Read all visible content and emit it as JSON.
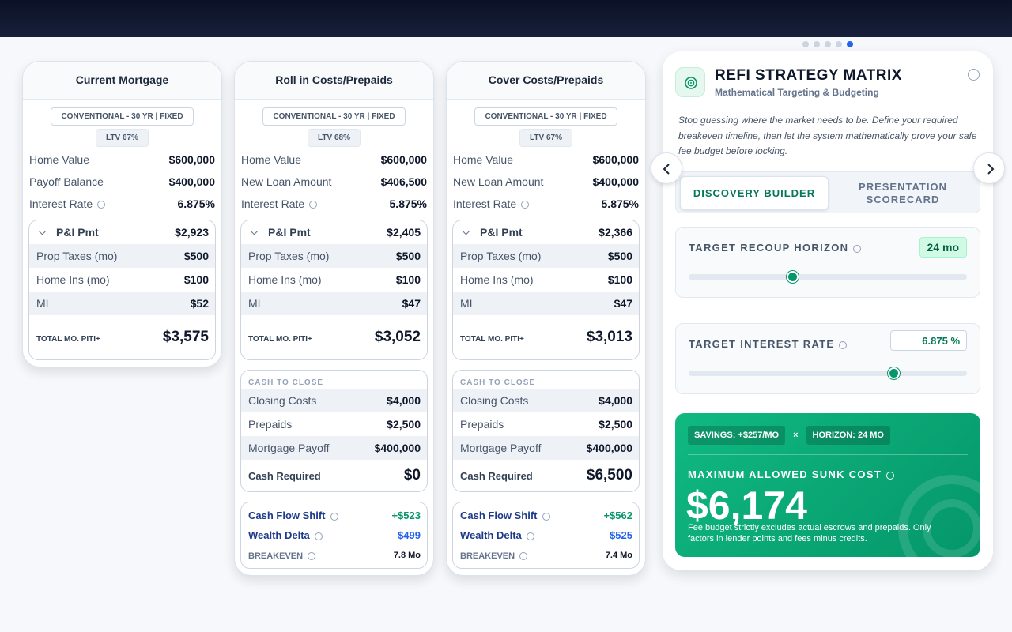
{
  "columns": [
    {
      "title": "Current Mortgage",
      "badges": [
        "CONVENTIONAL - 30 YR | FIXED",
        "LTV 67%"
      ],
      "rows": [
        [
          "Home Value",
          "$600,000"
        ],
        [
          "Payoff Balance",
          "$400,000"
        ],
        [
          "Interest Rate",
          "6.875%"
        ]
      ],
      "piti": {
        "head": [
          "P&I Pmt",
          "$2,923"
        ],
        "rows": [
          [
            "Prop Taxes (mo)",
            "$500"
          ],
          [
            "Home Ins (mo)",
            "$100"
          ],
          [
            "MI",
            "$52"
          ]
        ],
        "total": [
          "TOTAL MO. PITI+",
          "$3,575"
        ]
      }
    },
    {
      "title": "Roll in Costs/Prepaids",
      "badges": [
        "CONVENTIONAL - 30 YR | FIXED",
        "LTV 68%"
      ],
      "rows": [
        [
          "Home Value",
          "$600,000"
        ],
        [
          "New Loan Amount",
          "$406,500"
        ],
        [
          "Interest Rate",
          "5.875%"
        ]
      ],
      "piti": {
        "head": [
          "P&I Pmt",
          "$2,405"
        ],
        "rows": [
          [
            "Prop Taxes (mo)",
            "$500"
          ],
          [
            "Home Ins (mo)",
            "$100"
          ],
          [
            "MI",
            "$47"
          ]
        ],
        "total": [
          "TOTAL MO. PITI+",
          "$3,052"
        ]
      },
      "cash": {
        "label": "CASH TO CLOSE",
        "rows": [
          [
            "Closing Costs",
            "$4,000"
          ],
          [
            "Prepaids",
            "$2,500"
          ],
          [
            "Mortgage Payoff",
            "$400,000"
          ]
        ],
        "total": [
          "Cash Required",
          "$0"
        ]
      },
      "metrics": [
        [
          "Cash Flow Shift",
          "+$523"
        ],
        [
          "Wealth Delta",
          "$499"
        ],
        [
          "BREAKEVEN",
          "7.8 Mo"
        ]
      ]
    },
    {
      "title": "Cover Costs/Prepaids",
      "badges": [
        "CONVENTIONAL - 30 YR | FIXED",
        "LTV 67%"
      ],
      "rows": [
        [
          "Home Value",
          "$600,000"
        ],
        [
          "New Loan Amount",
          "$400,000"
        ],
        [
          "Interest Rate",
          "5.875%"
        ]
      ],
      "piti": {
        "head": [
          "P&I Pmt",
          "$2,366"
        ],
        "rows": [
          [
            "Prop Taxes (mo)",
            "$500"
          ],
          [
            "Home Ins (mo)",
            "$100"
          ],
          [
            "MI",
            "$47"
          ]
        ],
        "total": [
          "TOTAL MO. PITI+",
          "$3,013"
        ]
      },
      "cash": {
        "label": "CASH TO CLOSE",
        "rows": [
          [
            "Closing Costs",
            "$4,000"
          ],
          [
            "Prepaids",
            "$2,500"
          ],
          [
            "Mortgage Payoff",
            "$400,000"
          ]
        ],
        "total": [
          "Cash Required",
          "$6,500"
        ]
      },
      "metrics": [
        [
          "Cash Flow Shift",
          "+$562"
        ],
        [
          "Wealth Delta",
          "$525"
        ],
        [
          "BREAKEVEN",
          "7.4 Mo"
        ]
      ]
    }
  ],
  "strategy": {
    "title": "REFI STRATEGY MATRIX",
    "subtitle": "Mathematical Targeting & Budgeting",
    "description": "Stop guessing where the market needs to be. Define your required breakeven timeline, then let the system mathematically prove your safe fee budget before locking.",
    "tabs": [
      "DISCOVERY BUILDER",
      "PRESENTATION SCORECARD"
    ],
    "recoup": {
      "label": "TARGET RECOUP HORIZON",
      "value": "24 mo"
    },
    "rate": {
      "label": "TARGET INTEREST RATE",
      "value": "6.875",
      "unit": "%"
    },
    "result": {
      "chips": [
        "SAVINGS: +$257/MO",
        "×",
        "HORIZON: 24 MO"
      ],
      "label": "MAXIMUM ALLOWED SUNK COST",
      "amount": "$6,174",
      "note": "Fee budget strictly excludes actual escrows and prepaids. Only factors in lender points and fees minus credits."
    }
  }
}
